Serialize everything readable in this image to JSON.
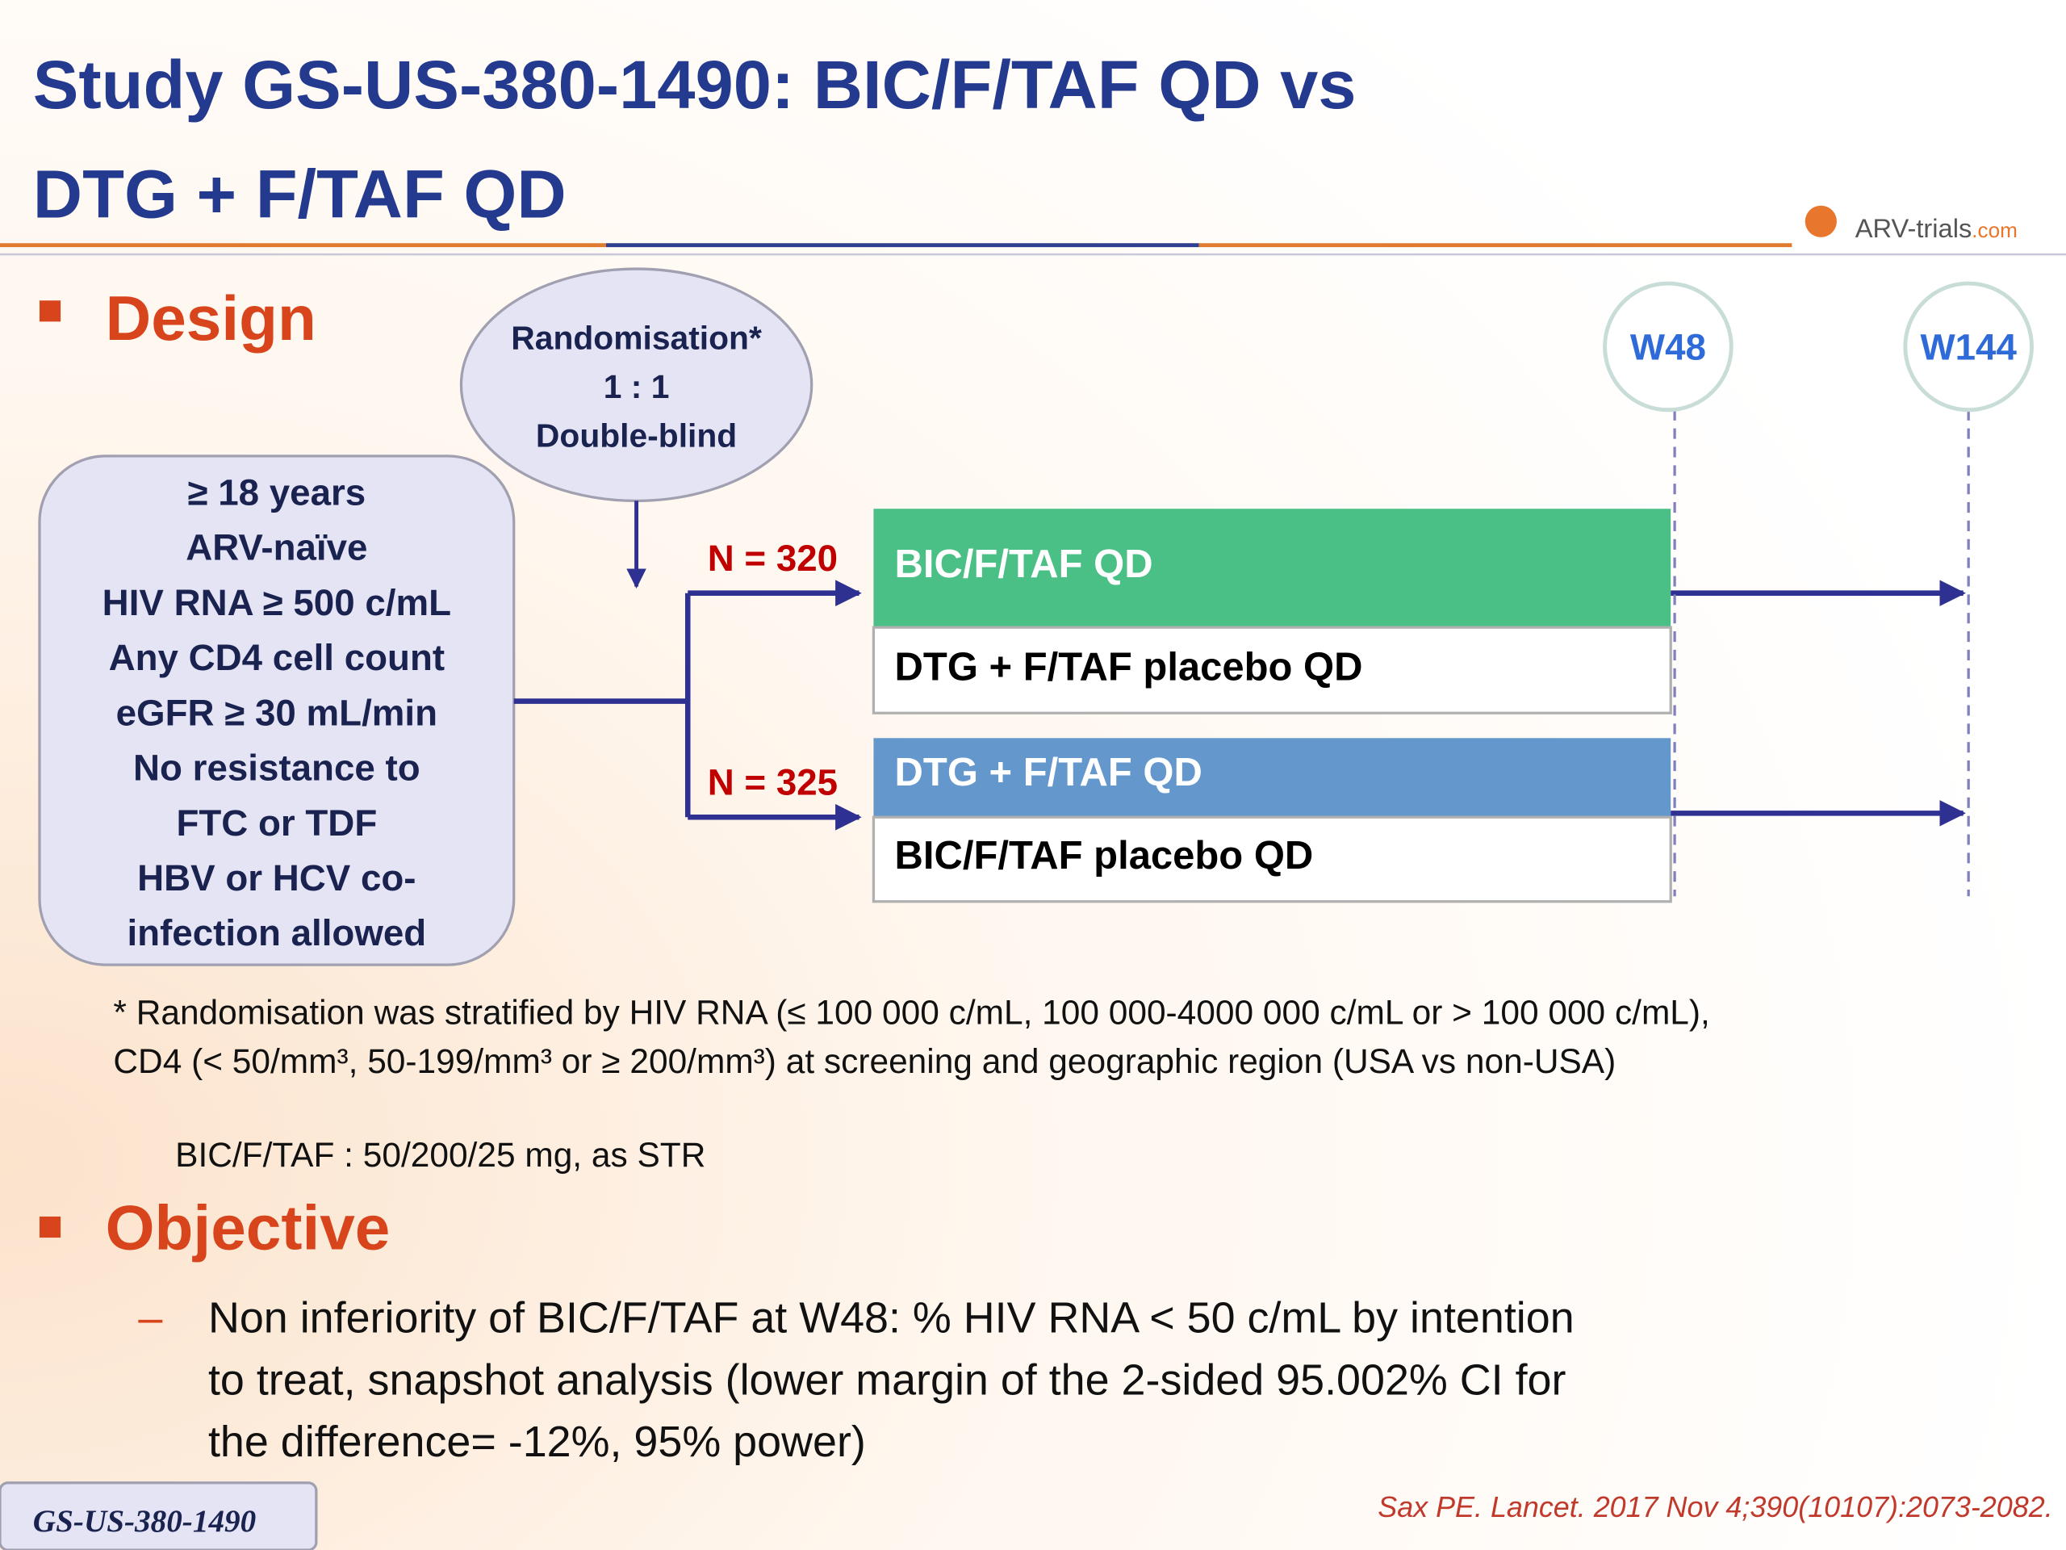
{
  "header": {
    "title_lines": [
      "Study GS-US-380-1490: BIC/F/TAF QD vs",
      "DTG + F/TAF QD"
    ],
    "logo_name": "ARV-trials",
    "logo_suffix": ".com"
  },
  "design": {
    "heading": "Design",
    "randomisation": [
      "Randomisation*",
      "1 : 1",
      "Double-blind"
    ],
    "criteria": [
      "≥ 18 years",
      "ARV-naïve",
      "HIV RNA ≥ 500 c/mL",
      "Any CD4 cell count",
      "eGFR ≥ 30 mL/min",
      "No resistance to",
      "FTC or TDF",
      "HBV or HCV co-",
      "infection allowed"
    ],
    "timepoints": [
      "W48",
      "W144"
    ],
    "arms": [
      {
        "n": "N = 320",
        "active": "BIC/F/TAF QD",
        "placebo": "DTG + F/TAF placebo QD"
      },
      {
        "n": "N = 325",
        "active": "DTG + F/TAF QD",
        "placebo": "BIC/F/TAF placebo QD"
      }
    ],
    "footnote": [
      "* Randomisation was stratified by HIV RNA (≤ 100 000 c/mL, 100 000-4000 000 c/mL or > 100 000 c/mL),",
      "CD4 (< 50/mm³, 50-199/mm³ or ≥ 200/mm³) at screening and geographic region (USA vs non-USA)"
    ],
    "dose": "BIC/F/TAF : 50/200/25 mg, as STR"
  },
  "objective": {
    "heading": "Objective",
    "dash": "–",
    "text_lines": [
      "Non inferiority of BIC/F/TAF at W48: % HIV RNA < 50 c/mL by intention",
      "to treat, snapshot analysis (lower margin of the 2-sided 95.002% CI for",
      "the difference= -12%, 95% power)"
    ]
  },
  "footer": {
    "study_tag": "GS-US-380-1490",
    "citation": "Sax PE. Lancet. 2017 Nov 4;390(10107):2073-2082."
  }
}
